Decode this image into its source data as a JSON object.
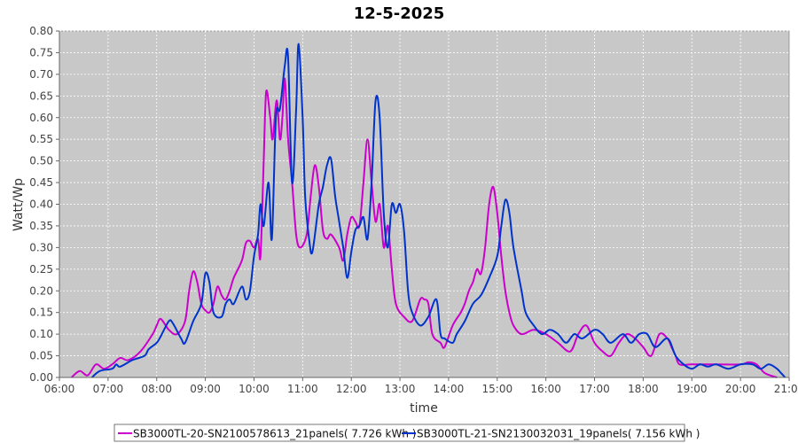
{
  "chart_data": {
    "type": "line",
    "title": "12-5-2025",
    "xlabel": "time",
    "ylabel": "Watt/Wp",
    "x_range": [
      "06:00",
      "21:00"
    ],
    "x_ticks": [
      "06:00",
      "07:00",
      "08:00",
      "09:00",
      "10:00",
      "11:00",
      "12:00",
      "13:00",
      "14:00",
      "15:00",
      "16:00",
      "17:00",
      "18:00",
      "19:00",
      "20:00",
      "21:00"
    ],
    "ylim": [
      0,
      0.8
    ],
    "y_ticks": [
      "0.00",
      "0.05",
      "0.10",
      "0.15",
      "0.20",
      "0.25",
      "0.30",
      "0.35",
      "0.40",
      "0.45",
      "0.50",
      "0.55",
      "0.60",
      "0.65",
      "0.70",
      "0.75",
      "0.80"
    ],
    "grid": true,
    "legend_position": "bottom",
    "series": [
      {
        "name": "SB3000TL-20-SN2100578613_21panels( 7.726 kWh )",
        "color": "#cc00cc",
        "points": [
          [
            "06:15",
            0.0
          ],
          [
            "06:25",
            0.015
          ],
          [
            "06:35",
            0.005
          ],
          [
            "06:45",
            0.03
          ],
          [
            "06:55",
            0.02
          ],
          [
            "07:05",
            0.03
          ],
          [
            "07:15",
            0.045
          ],
          [
            "07:25",
            0.04
          ],
          [
            "07:40",
            0.06
          ],
          [
            "07:55",
            0.1
          ],
          [
            "08:00",
            0.12
          ],
          [
            "08:05",
            0.135
          ],
          [
            "08:15",
            0.11
          ],
          [
            "08:25",
            0.1
          ],
          [
            "08:35",
            0.13
          ],
          [
            "08:40",
            0.2
          ],
          [
            "08:45",
            0.245
          ],
          [
            "08:50",
            0.22
          ],
          [
            "08:55",
            0.17
          ],
          [
            "09:00",
            0.155
          ],
          [
            "09:05",
            0.15
          ],
          [
            "09:10",
            0.17
          ],
          [
            "09:15",
            0.21
          ],
          [
            "09:20",
            0.19
          ],
          [
            "09:25",
            0.18
          ],
          [
            "09:30",
            0.2
          ],
          [
            "09:35",
            0.23
          ],
          [
            "09:45",
            0.27
          ],
          [
            "09:50",
            0.31
          ],
          [
            "09:55",
            0.315
          ],
          [
            "10:00",
            0.3
          ],
          [
            "10:05",
            0.32
          ],
          [
            "10:08",
            0.28
          ],
          [
            "10:12",
            0.5
          ],
          [
            "10:15",
            0.66
          ],
          [
            "10:20",
            0.6
          ],
          [
            "10:23",
            0.55
          ],
          [
            "10:28",
            0.64
          ],
          [
            "10:32",
            0.55
          ],
          [
            "10:35",
            0.6
          ],
          [
            "10:38",
            0.69
          ],
          [
            "10:42",
            0.55
          ],
          [
            "10:47",
            0.45
          ],
          [
            "10:52",
            0.33
          ],
          [
            "10:57",
            0.3
          ],
          [
            "11:05",
            0.33
          ],
          [
            "11:10",
            0.42
          ],
          [
            "11:15",
            0.49
          ],
          [
            "11:20",
            0.44
          ],
          [
            "11:25",
            0.34
          ],
          [
            "11:30",
            0.32
          ],
          [
            "11:35",
            0.33
          ],
          [
            "11:45",
            0.3
          ],
          [
            "11:50",
            0.27
          ],
          [
            "11:55",
            0.33
          ],
          [
            "12:00",
            0.37
          ],
          [
            "12:05",
            0.36
          ],
          [
            "12:10",
            0.35
          ],
          [
            "12:15",
            0.45
          ],
          [
            "12:20",
            0.55
          ],
          [
            "12:25",
            0.45
          ],
          [
            "12:30",
            0.36
          ],
          [
            "12:35",
            0.4
          ],
          [
            "12:40",
            0.3
          ],
          [
            "12:45",
            0.35
          ],
          [
            "12:50",
            0.25
          ],
          [
            "12:55",
            0.17
          ],
          [
            "13:05",
            0.14
          ],
          [
            "13:15",
            0.13
          ],
          [
            "13:25",
            0.18
          ],
          [
            "13:30",
            0.18
          ],
          [
            "13:35",
            0.17
          ],
          [
            "13:40",
            0.1
          ],
          [
            "13:50",
            0.08
          ],
          [
            "13:55",
            0.07
          ],
          [
            "14:05",
            0.12
          ],
          [
            "14:15",
            0.15
          ],
          [
            "14:20",
            0.17
          ],
          [
            "14:25",
            0.2
          ],
          [
            "14:30",
            0.22
          ],
          [
            "14:35",
            0.25
          ],
          [
            "14:40",
            0.24
          ],
          [
            "14:45",
            0.3
          ],
          [
            "14:50",
            0.4
          ],
          [
            "14:55",
            0.44
          ],
          [
            "15:00",
            0.38
          ],
          [
            "15:05",
            0.28
          ],
          [
            "15:10",
            0.2
          ],
          [
            "15:15",
            0.15
          ],
          [
            "15:20",
            0.12
          ],
          [
            "15:30",
            0.1
          ],
          [
            "15:45",
            0.11
          ],
          [
            "16:00",
            0.1
          ],
          [
            "16:15",
            0.08
          ],
          [
            "16:30",
            0.06
          ],
          [
            "16:40",
            0.1
          ],
          [
            "16:50",
            0.12
          ],
          [
            "17:00",
            0.08
          ],
          [
            "17:10",
            0.06
          ],
          [
            "17:20",
            0.05
          ],
          [
            "17:30",
            0.08
          ],
          [
            "17:40",
            0.1
          ],
          [
            "17:50",
            0.09
          ],
          [
            "18:00",
            0.07
          ],
          [
            "18:10",
            0.05
          ],
          [
            "18:20",
            0.1
          ],
          [
            "18:30",
            0.09
          ],
          [
            "18:35",
            0.07
          ],
          [
            "18:40",
            0.05
          ],
          [
            "18:45",
            0.03
          ],
          [
            "19:00",
            0.03
          ],
          [
            "19:30",
            0.03
          ],
          [
            "20:00",
            0.03
          ],
          [
            "20:10",
            0.035
          ],
          [
            "20:20",
            0.03
          ],
          [
            "20:30",
            0.01
          ],
          [
            "20:45",
            0.0
          ]
        ]
      },
      {
        "name": "SB3000TL-21-SN2130032031_19panels( 7.156 kWh )",
        "color": "#0033cc",
        "points": [
          [
            "06:40",
            0.0
          ],
          [
            "06:50",
            0.015
          ],
          [
            "07:05",
            0.02
          ],
          [
            "07:10",
            0.03
          ],
          [
            "07:15",
            0.025
          ],
          [
            "07:30",
            0.04
          ],
          [
            "07:45",
            0.05
          ],
          [
            "07:50",
            0.065
          ],
          [
            "08:00",
            0.08
          ],
          [
            "08:05",
            0.095
          ],
          [
            "08:15",
            0.13
          ],
          [
            "08:20",
            0.125
          ],
          [
            "08:30",
            0.09
          ],
          [
            "08:35",
            0.08
          ],
          [
            "08:45",
            0.13
          ],
          [
            "08:55",
            0.17
          ],
          [
            "09:00",
            0.24
          ],
          [
            "09:05",
            0.22
          ],
          [
            "09:10",
            0.15
          ],
          [
            "09:20",
            0.14
          ],
          [
            "09:25",
            0.17
          ],
          [
            "09:30",
            0.18
          ],
          [
            "09:35",
            0.17
          ],
          [
            "09:45",
            0.21
          ],
          [
            "09:50",
            0.18
          ],
          [
            "09:55",
            0.2
          ],
          [
            "10:00",
            0.28
          ],
          [
            "10:05",
            0.33
          ],
          [
            "10:08",
            0.4
          ],
          [
            "10:12",
            0.35
          ],
          [
            "10:18",
            0.45
          ],
          [
            "10:22",
            0.32
          ],
          [
            "10:27",
            0.6
          ],
          [
            "10:32",
            0.62
          ],
          [
            "10:38",
            0.72
          ],
          [
            "10:42",
            0.74
          ],
          [
            "10:47",
            0.45
          ],
          [
            "10:52",
            0.62
          ],
          [
            "10:55",
            0.77
          ],
          [
            "11:00",
            0.6
          ],
          [
            "11:03",
            0.42
          ],
          [
            "11:08",
            0.32
          ],
          [
            "11:12",
            0.29
          ],
          [
            "11:20",
            0.4
          ],
          [
            "11:25",
            0.44
          ],
          [
            "11:30",
            0.49
          ],
          [
            "11:35",
            0.505
          ],
          [
            "11:40",
            0.42
          ],
          [
            "11:45",
            0.36
          ],
          [
            "11:50",
            0.3
          ],
          [
            "11:55",
            0.23
          ],
          [
            "12:00",
            0.29
          ],
          [
            "12:05",
            0.34
          ],
          [
            "12:10",
            0.35
          ],
          [
            "12:15",
            0.37
          ],
          [
            "12:20",
            0.32
          ],
          [
            "12:25",
            0.45
          ],
          [
            "12:30",
            0.64
          ],
          [
            "12:35",
            0.6
          ],
          [
            "12:40",
            0.38
          ],
          [
            "12:45",
            0.3
          ],
          [
            "12:50",
            0.4
          ],
          [
            "12:55",
            0.38
          ],
          [
            "13:00",
            0.4
          ],
          [
            "13:05",
            0.34
          ],
          [
            "13:10",
            0.2
          ],
          [
            "13:15",
            0.15
          ],
          [
            "13:25",
            0.12
          ],
          [
            "13:35",
            0.14
          ],
          [
            "13:45",
            0.18
          ],
          [
            "13:50",
            0.1
          ],
          [
            "13:55",
            0.09
          ],
          [
            "14:05",
            0.08
          ],
          [
            "14:10",
            0.1
          ],
          [
            "14:20",
            0.13
          ],
          [
            "14:30",
            0.17
          ],
          [
            "14:40",
            0.19
          ],
          [
            "14:50",
            0.23
          ],
          [
            "15:00",
            0.28
          ],
          [
            "15:05",
            0.35
          ],
          [
            "15:10",
            0.41
          ],
          [
            "15:15",
            0.38
          ],
          [
            "15:20",
            0.3
          ],
          [
            "15:30",
            0.2
          ],
          [
            "15:35",
            0.15
          ],
          [
            "15:45",
            0.12
          ],
          [
            "15:55",
            0.1
          ],
          [
            "16:05",
            0.11
          ],
          [
            "16:15",
            0.1
          ],
          [
            "16:25",
            0.08
          ],
          [
            "16:35",
            0.1
          ],
          [
            "16:45",
            0.09
          ],
          [
            "17:00",
            0.11
          ],
          [
            "17:10",
            0.1
          ],
          [
            "17:20",
            0.08
          ],
          [
            "17:35",
            0.1
          ],
          [
            "17:45",
            0.08
          ],
          [
            "17:55",
            0.1
          ],
          [
            "18:05",
            0.1
          ],
          [
            "18:15",
            0.07
          ],
          [
            "18:30",
            0.09
          ],
          [
            "18:40",
            0.05
          ],
          [
            "18:50",
            0.03
          ],
          [
            "19:00",
            0.02
          ],
          [
            "19:10",
            0.03
          ],
          [
            "19:20",
            0.025
          ],
          [
            "19:30",
            0.03
          ],
          [
            "19:45",
            0.02
          ],
          [
            "20:00",
            0.03
          ],
          [
            "20:15",
            0.03
          ],
          [
            "20:25",
            0.02
          ],
          [
            "20:35",
            0.03
          ],
          [
            "20:45",
            0.02
          ],
          [
            "20:50",
            0.01
          ],
          [
            "20:55",
            0.0
          ]
        ]
      }
    ]
  }
}
